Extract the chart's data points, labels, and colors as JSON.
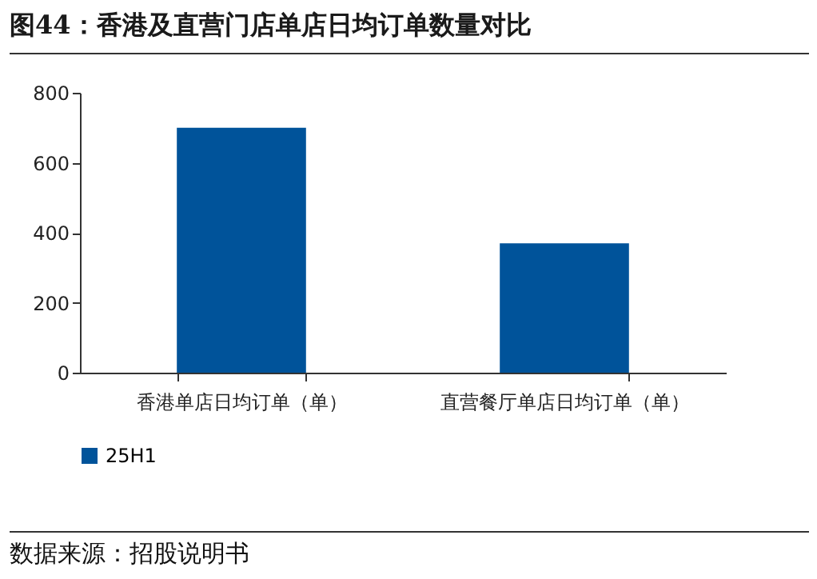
{
  "chart_data": {
    "type": "bar",
    "title": "图44：香港及直营门店单店日均订单数量对比",
    "categories": [
      "香港单店日均订单（单）",
      "直营餐厅单店日均订单（单）"
    ],
    "series": [
      {
        "name": "25H1",
        "color": "#00539a",
        "values": [
          700,
          370
        ]
      }
    ],
    "ylim": [
      0,
      800
    ],
    "yticks": [
      0,
      200,
      400,
      600,
      800
    ],
    "grid": false,
    "legend": "bottom",
    "annotations": [
      "数据来源：招股说明书"
    ]
  }
}
